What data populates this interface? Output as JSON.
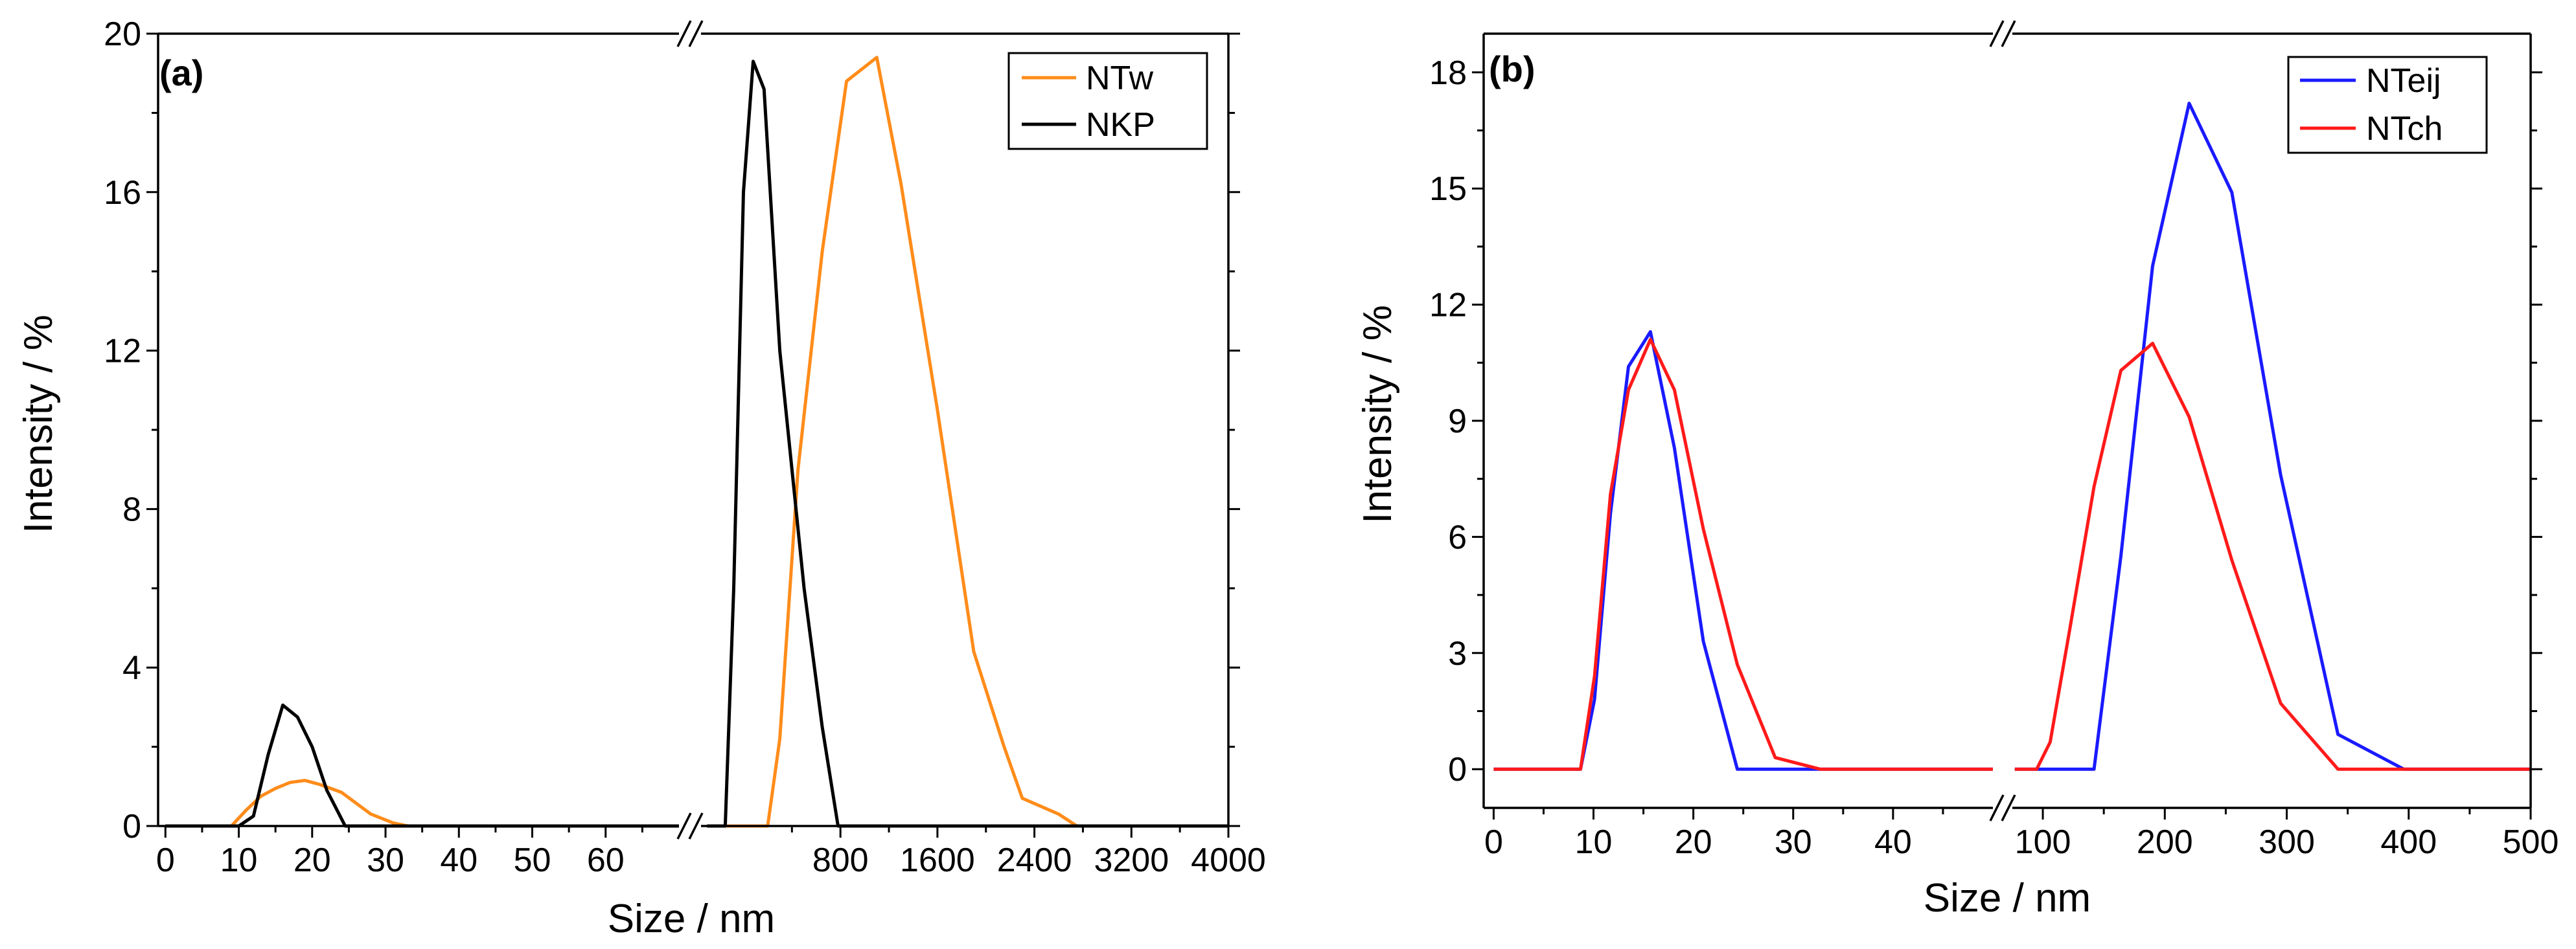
{
  "chart_data": [
    {
      "panel": "(a)",
      "type": "line",
      "xlabel": "Size / nm",
      "ylabel": "Intensity / %",
      "ylim": [
        0,
        20
      ],
      "y_ticks": [
        0,
        4,
        8,
        12,
        16,
        20
      ],
      "y_tick_labels": [
        "0",
        "4",
        "8",
        "12",
        "16",
        "20"
      ],
      "x_broken": true,
      "x_segments": [
        {
          "range": [
            -1,
            70
          ],
          "ticks": [
            0,
            10,
            20,
            30,
            40,
            50,
            60
          ],
          "tick_labels": [
            "0",
            "10",
            "20",
            "30",
            "40",
            "50",
            "60"
          ]
        },
        {
          "range": [
            -350,
            4000
          ],
          "ticks": [
            800,
            1600,
            2400,
            3200,
            4000
          ],
          "tick_labels": [
            "800",
            "1600",
            "2400",
            "3200",
            "4000"
          ]
        }
      ],
      "legend_position": "top-right",
      "series": [
        {
          "name": "NTw",
          "color": "#ff8c1a",
          "segments": [
            [
              [
                0,
                0
              ],
              [
                9,
                0
              ],
              [
                11,
                0.4
              ],
              [
                13,
                0.75
              ],
              [
                15,
                0.95
              ],
              [
                17,
                1.1
              ],
              [
                19,
                1.15
              ],
              [
                21,
                1.05
              ],
              [
                24,
                0.85
              ],
              [
                28,
                0.3
              ],
              [
                31,
                0.08
              ],
              [
                33,
                0
              ],
              [
                70,
                0
              ]
            ],
            [
              [
                -300,
                0
              ],
              [
                200,
                0
              ],
              [
                300,
                2.2
              ],
              [
                450,
                9.0
              ],
              [
                650,
                14.5
              ],
              [
                850,
                18.8
              ],
              [
                1100,
                19.4
              ],
              [
                1300,
                16.2
              ],
              [
                1600,
                10.5
              ],
              [
                1900,
                4.4
              ],
              [
                2150,
                2.0
              ],
              [
                2300,
                0.7
              ],
              [
                2600,
                0.3
              ],
              [
                2750,
                0
              ],
              [
                4000,
                0
              ]
            ]
          ]
        },
        {
          "name": "NKP",
          "color": "#000000",
          "segments": [
            [
              [
                0,
                0
              ],
              [
                10,
                0
              ],
              [
                12,
                0.25
              ],
              [
                14,
                1.8
              ],
              [
                16,
                3.05
              ],
              [
                18,
                2.75
              ],
              [
                20,
                2.0
              ],
              [
                22,
                0.9
              ],
              [
                24.5,
                0
              ],
              [
                70,
                0
              ]
            ],
            [
              [
                -300,
                0
              ],
              [
                -150,
                0
              ],
              [
                -80,
                6.0
              ],
              [
                0,
                16.0
              ],
              [
                80,
                19.3
              ],
              [
                170,
                18.6
              ],
              [
                300,
                12.0
              ],
              [
                500,
                6.0
              ],
              [
                650,
                2.5
              ],
              [
                780,
                0
              ],
              [
                4000,
                0
              ]
            ]
          ]
        }
      ]
    },
    {
      "panel": "(b)",
      "type": "line",
      "xlabel": "Size / nm",
      "ylabel": "Intensity / %",
      "ylim": [
        -1,
        19
      ],
      "y_ticks": [
        0,
        3,
        6,
        9,
        12,
        15,
        18
      ],
      "y_tick_labels": [
        "0",
        "3",
        "6",
        "9",
        "12",
        "15",
        "18"
      ],
      "x_broken": true,
      "x_segments": [
        {
          "range": [
            -1,
            50
          ],
          "ticks": [
            0,
            10,
            20,
            30,
            40
          ],
          "tick_labels": [
            "0",
            "10",
            "20",
            "30",
            "40"
          ]
        },
        {
          "range": [
            75,
            500
          ],
          "ticks": [
            100,
            200,
            300,
            400,
            500
          ],
          "tick_labels": [
            "100",
            "200",
            "300",
            "400",
            "500"
          ]
        }
      ],
      "legend_position": "top-right",
      "series": [
        {
          "name": "NTeij",
          "color": "#1a1aff",
          "segments": [
            [
              [
                0,
                0
              ],
              [
                8.7,
                0
              ],
              [
                10.1,
                1.8
              ],
              [
                11.7,
                6.6
              ],
              [
                13.5,
                10.4
              ],
              [
                15.7,
                11.3
              ],
              [
                18.1,
                8.3
              ],
              [
                21.0,
                3.3
              ],
              [
                24.4,
                0
              ],
              [
                50,
                0
              ]
            ],
            [
              [
                77,
                0
              ],
              [
                142,
                0
              ],
              [
                164,
                5.5
              ],
              [
                190,
                13.0
              ],
              [
                220,
                17.2
              ],
              [
                255,
                14.9
              ],
              [
                295,
                7.6
              ],
              [
                342,
                0.9
              ],
              [
                396,
                0
              ],
              [
                500,
                0
              ]
            ]
          ]
        },
        {
          "name": "NTch",
          "color": "#ff1a1a",
          "segments": [
            [
              [
                0,
                0
              ],
              [
                8.7,
                0
              ],
              [
                10.1,
                2.4
              ],
              [
                11.7,
                7.1
              ],
              [
                13.5,
                9.8
              ],
              [
                15.7,
                11.1
              ],
              [
                18.1,
                9.8
              ],
              [
                21.0,
                6.2
              ],
              [
                24.4,
                2.7
              ],
              [
                28.2,
                0.3
              ],
              [
                32.7,
                0
              ],
              [
                50,
                0
              ]
            ],
            [
              [
                77,
                0
              ],
              [
                95,
                0
              ],
              [
                106,
                0.7
              ],
              [
                122,
                3.6
              ],
              [
                142,
                7.3
              ],
              [
                164,
                10.3
              ],
              [
                190,
                11.0
              ],
              [
                220,
                9.1
              ],
              [
                255,
                5.4
              ],
              [
                295,
                1.7
              ],
              [
                342,
                0
              ],
              [
                500,
                0
              ]
            ]
          ]
        }
      ]
    }
  ]
}
